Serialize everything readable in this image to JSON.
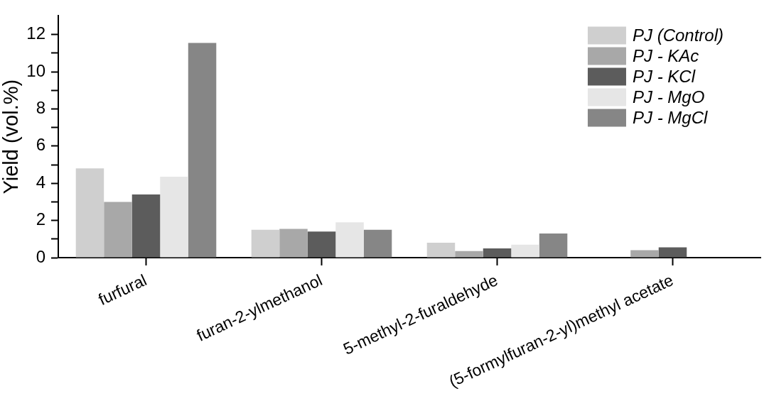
{
  "chart_data": {
    "type": "bar",
    "ylabel": "Yield (vol.%)",
    "categories": [
      "furfural",
      "furan-2-ylmethanol",
      "5-methyl-2-furaldehyde",
      "(5-formylfuran-2-yl)methyl acetate"
    ],
    "series": [
      {
        "name": "PJ (Control)",
        "color": "#cfcfcf",
        "values": [
          4.8,
          1.5,
          0.8,
          null
        ]
      },
      {
        "name": "PJ - KAc",
        "color": "#a8a8a8",
        "values": [
          3.0,
          1.55,
          0.35,
          0.4
        ]
      },
      {
        "name": "PJ - KCl",
        "color": "#5c5c5c",
        "values": [
          3.4,
          1.4,
          0.5,
          0.55
        ]
      },
      {
        "name": "PJ - MgO",
        "color": "#e6e6e6",
        "values": [
          4.35,
          1.9,
          0.7,
          null
        ]
      },
      {
        "name": "PJ - MgCl",
        "color": "#868686",
        "values": [
          11.55,
          1.5,
          1.3,
          null
        ]
      }
    ],
    "ylim": [
      0,
      13
    ],
    "yticks": [
      0,
      {
        "value": 1,
        "label": null
      },
      2,
      {
        "value": 3,
        "label": null
      },
      4,
      {
        "value": 5,
        "label": null
      },
      6,
      {
        "value": 7,
        "label": null
      },
      8,
      {
        "value": 9,
        "label": null
      },
      10,
      {
        "value": 11,
        "label": null
      },
      12
    ],
    "grid": false,
    "legend": "top right"
  }
}
